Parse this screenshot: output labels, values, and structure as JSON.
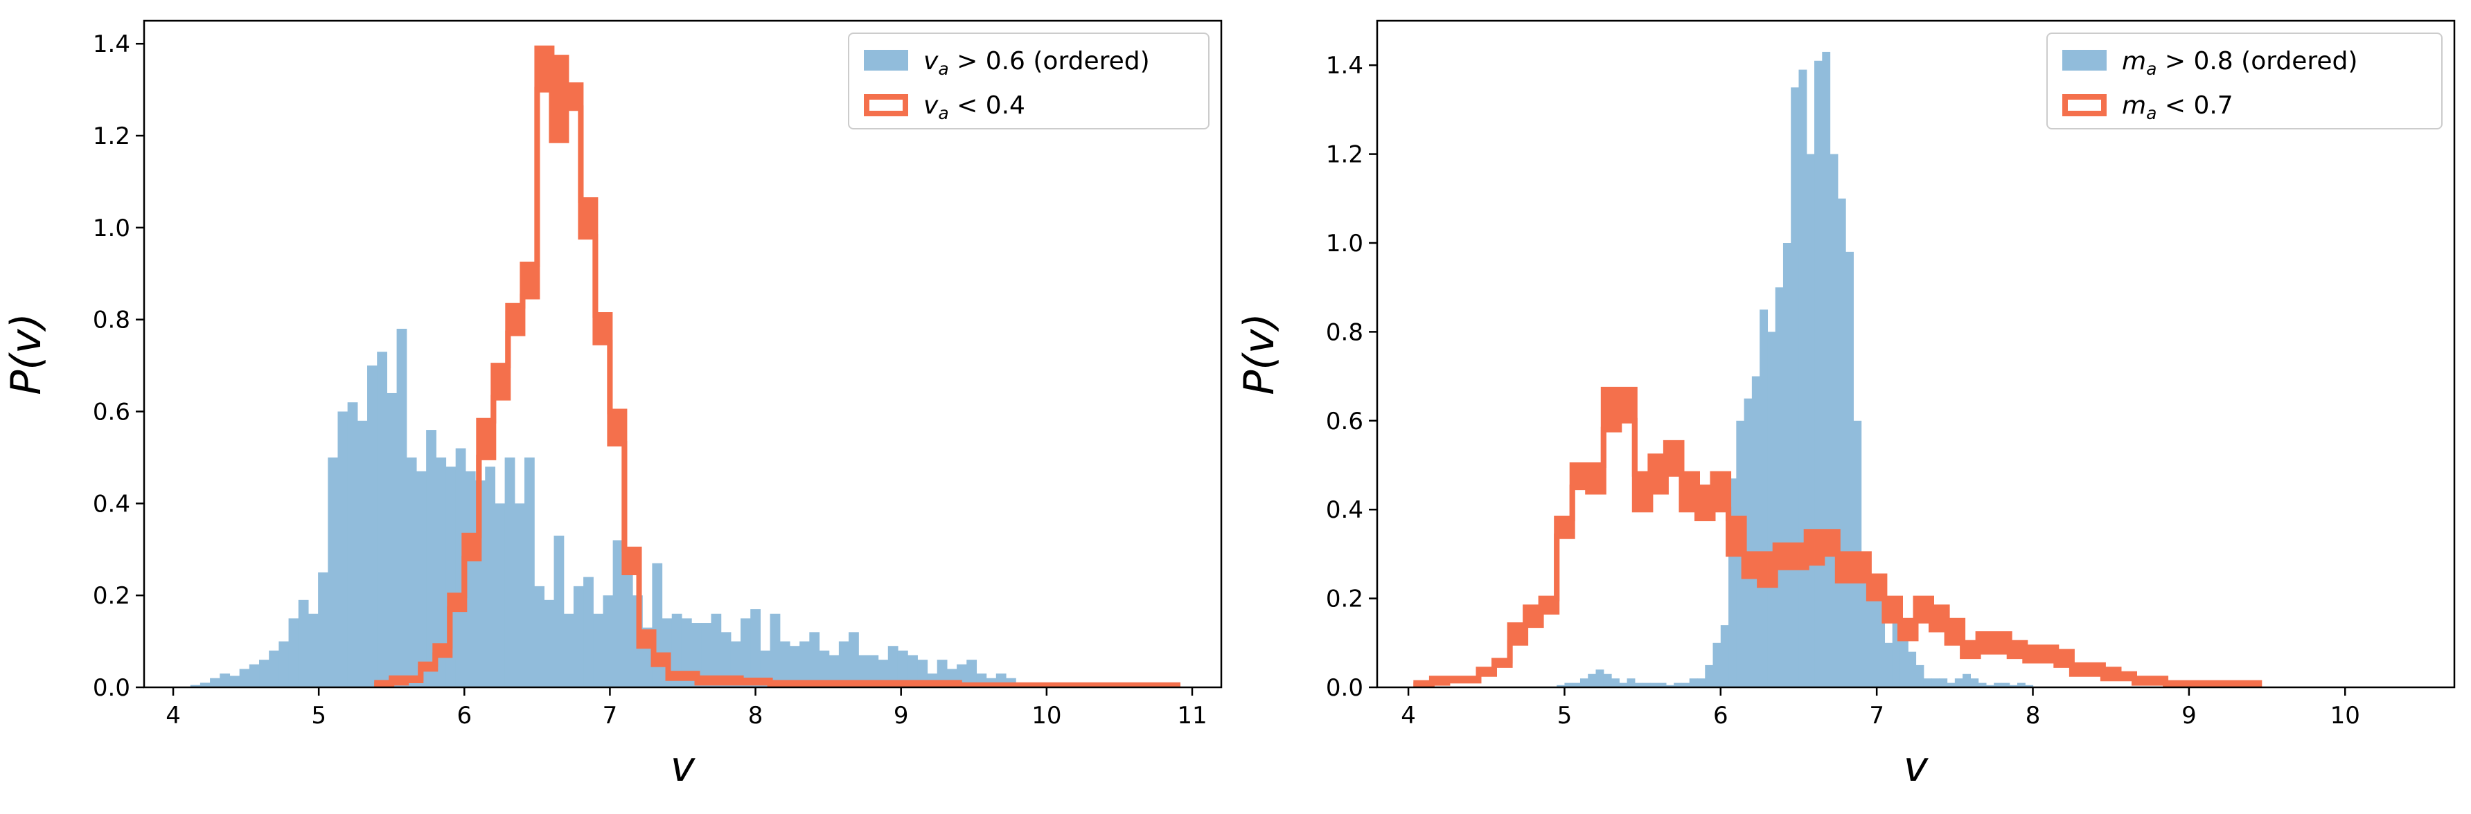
{
  "chart_data": [
    {
      "type": "histogram",
      "xlabel": "v",
      "ylabel": "P(v)",
      "xlim": [
        3.8,
        11.2
      ],
      "ylim": [
        0,
        1.45
      ],
      "xticks": [
        "4",
        "5",
        "6",
        "7",
        "8",
        "9",
        "10",
        "11"
      ],
      "yticks": [
        "0.0",
        "0.2",
        "0.4",
        "0.6",
        "0.8",
        "1.0",
        "1.2",
        "1.4"
      ],
      "legend_position": "upper-right",
      "grid": false,
      "bin_start": 4.05,
      "bin_width": 0.0675,
      "series": [
        {
          "legend_var": "v",
          "legend_sub": "a",
          "legend_rel": " > 0.6 (ordered)",
          "style": "filled",
          "color": "#91bcdb",
          "values": [
            0,
            0.005,
            0.01,
            0.02,
            0.03,
            0.025,
            0.04,
            0.05,
            0.06,
            0.08,
            0.1,
            0.15,
            0.19,
            0.16,
            0.25,
            0.5,
            0.6,
            0.62,
            0.58,
            0.7,
            0.73,
            0.64,
            0.78,
            0.5,
            0.47,
            0.56,
            0.5,
            0.48,
            0.52,
            0.47,
            0.45,
            0.48,
            0.4,
            0.5,
            0.4,
            0.5,
            0.22,
            0.19,
            0.33,
            0.16,
            0.22,
            0.24,
            0.16,
            0.2,
            0.32,
            0.27,
            0.2,
            0.13,
            0.27,
            0.15,
            0.16,
            0.15,
            0.14,
            0.14,
            0.16,
            0.12,
            0.1,
            0.15,
            0.17,
            0.08,
            0.16,
            0.1,
            0.09,
            0.1,
            0.12,
            0.08,
            0.07,
            0.1,
            0.12,
            0.07,
            0.07,
            0.06,
            0.09,
            0.08,
            0.07,
            0.06,
            0.03,
            0.06,
            0.04,
            0.05,
            0.06,
            0.03,
            0.02,
            0.03,
            0.02,
            0.01,
            0.01,
            0.01,
            0.01,
            0.005,
            0.005,
            0.005,
            0,
            0,
            0,
            0,
            0,
            0,
            0,
            0
          ]
        },
        {
          "legend_var": "v",
          "legend_sub": "a",
          "legend_rel": " < 0.4",
          "style": "step",
          "color": "#f4704c",
          "x": [
            5.45,
            5.55,
            5.65,
            5.75,
            5.85,
            5.95,
            6.05,
            6.15,
            6.25,
            6.35,
            6.45,
            6.55,
            6.65,
            6.75,
            6.85,
            6.95,
            7.05,
            7.15,
            7.25,
            7.35,
            7.45,
            7.55,
            7.65,
            7.75,
            7.85,
            7.95,
            8.05,
            8.15,
            8.3,
            8.5,
            8.7,
            8.9,
            9.1,
            9.3,
            9.5,
            9.7,
            9.9,
            10.1,
            10.3,
            10.5,
            10.7,
            10.85
          ],
          "upper": [
            0.01,
            0.02,
            0.02,
            0.05,
            0.09,
            0.2,
            0.33,
            0.58,
            0.7,
            0.83,
            0.92,
            1.39,
            1.37,
            1.31,
            1.06,
            0.81,
            0.6,
            0.3,
            0.12,
            0.07,
            0.03,
            0.03,
            0.02,
            0.02,
            0.02,
            0.015,
            0.015,
            0.01,
            0.01,
            0.01,
            0.01,
            0.01,
            0.01,
            0.01,
            0.005,
            0.005,
            0.005,
            0.005,
            0.005,
            0.005,
            0.005,
            0.005
          ],
          "lower": [
            0.005,
            0.01,
            0.015,
            0.04,
            0.07,
            0.17,
            0.28,
            0.5,
            0.63,
            0.77,
            0.85,
            1.3,
            1.19,
            1.26,
            0.98,
            0.75,
            0.53,
            0.25,
            0.09,
            0.05,
            0.02,
            0.02,
            0.01,
            0.01,
            0.01,
            0.01,
            0.01,
            0.005,
            0.005,
            0.005,
            0.005,
            0.005,
            0.005,
            0.005,
            0,
            0,
            0,
            0,
            0,
            0,
            0,
            0
          ]
        }
      ]
    },
    {
      "type": "histogram",
      "xlabel": "v",
      "ylabel": "P(v)",
      "xlim": [
        3.8,
        10.7
      ],
      "ylim": [
        0,
        1.5
      ],
      "xticks": [
        "4",
        "5",
        "6",
        "7",
        "8",
        "9",
        "10"
      ],
      "yticks": [
        "0.0",
        "0.2",
        "0.4",
        "0.6",
        "0.8",
        "1.0",
        "1.2",
        "1.4"
      ],
      "legend_position": "upper-right",
      "grid": false,
      "bin_start": 4.1,
      "bin_width": 0.05,
      "series": [
        {
          "legend_var": "m",
          "legend_sub": "a",
          "legend_rel": " > 0.8  (ordered)",
          "style": "filled",
          "color": "#91bcdb",
          "values": [
            0,
            0,
            0,
            0,
            0,
            0,
            0,
            0,
            0,
            0,
            0,
            0,
            0,
            0,
            0,
            0,
            0,
            0.005,
            0.01,
            0.01,
            0.02,
            0.03,
            0.04,
            0.03,
            0.02,
            0.01,
            0.02,
            0.01,
            0.01,
            0.01,
            0.01,
            0.005,
            0.01,
            0.01,
            0.02,
            0.02,
            0.05,
            0.1,
            0.14,
            0.47,
            0.6,
            0.65,
            0.7,
            0.85,
            0.8,
            0.9,
            1.0,
            1.35,
            1.39,
            1.2,
            1.41,
            1.43,
            1.2,
            1.1,
            0.98,
            0.6,
            0.3,
            0.25,
            0.2,
            0.1,
            0.2,
            0.15,
            0.08,
            0.05,
            0.02,
            0.02,
            0.02,
            0.01,
            0.02,
            0.03,
            0.02,
            0.01,
            0.005,
            0.01,
            0.01,
            0.005,
            0.01,
            0.005,
            0,
            0,
            0,
            0,
            0,
            0,
            0,
            0,
            0,
            0,
            0,
            0,
            0,
            0,
            0,
            0,
            0,
            0
          ]
        },
        {
          "legend_var": "m",
          "legend_sub": "a",
          "legend_rel": " < 0.7",
          "style": "step",
          "color": "#f4704c",
          "x": [
            4.1,
            4.2,
            4.3,
            4.4,
            4.5,
            4.6,
            4.7,
            4.8,
            4.9,
            5.0,
            5.1,
            5.2,
            5.3,
            5.4,
            5.5,
            5.6,
            5.7,
            5.8,
            5.9,
            6.0,
            6.1,
            6.2,
            6.3,
            6.4,
            6.5,
            6.6,
            6.7,
            6.8,
            6.9,
            7.0,
            7.1,
            7.2,
            7.3,
            7.4,
            7.5,
            7.6,
            7.7,
            7.8,
            7.9,
            8.0,
            8.1,
            8.2,
            8.3,
            8.4,
            8.5,
            8.6,
            8.7,
            8.8,
            8.9,
            9.0,
            9.1,
            9.2,
            9.3,
            9.4
          ],
          "upper": [
            0.01,
            0.02,
            0.02,
            0.02,
            0.04,
            0.06,
            0.14,
            0.18,
            0.2,
            0.38,
            0.5,
            0.5,
            0.67,
            0.67,
            0.48,
            0.52,
            0.55,
            0.48,
            0.45,
            0.48,
            0.38,
            0.3,
            0.3,
            0.32,
            0.32,
            0.35,
            0.35,
            0.3,
            0.3,
            0.25,
            0.2,
            0.15,
            0.2,
            0.18,
            0.15,
            0.1,
            0.12,
            0.12,
            0.1,
            0.09,
            0.09,
            0.08,
            0.05,
            0.05,
            0.04,
            0.03,
            0.02,
            0.02,
            0.01,
            0.01,
            0.01,
            0.01,
            0.01,
            0.01
          ],
          "lower": [
            0.005,
            0.01,
            0.015,
            0.015,
            0.03,
            0.05,
            0.1,
            0.14,
            0.17,
            0.34,
            0.45,
            0.44,
            0.58,
            0.6,
            0.4,
            0.44,
            0.48,
            0.4,
            0.38,
            0.4,
            0.3,
            0.25,
            0.23,
            0.27,
            0.27,
            0.28,
            0.3,
            0.24,
            0.24,
            0.2,
            0.15,
            0.11,
            0.15,
            0.13,
            0.1,
            0.07,
            0.08,
            0.08,
            0.07,
            0.06,
            0.06,
            0.05,
            0.03,
            0.03,
            0.02,
            0.02,
            0.01,
            0.01,
            0,
            0,
            0,
            0,
            0,
            0
          ]
        }
      ]
    }
  ]
}
